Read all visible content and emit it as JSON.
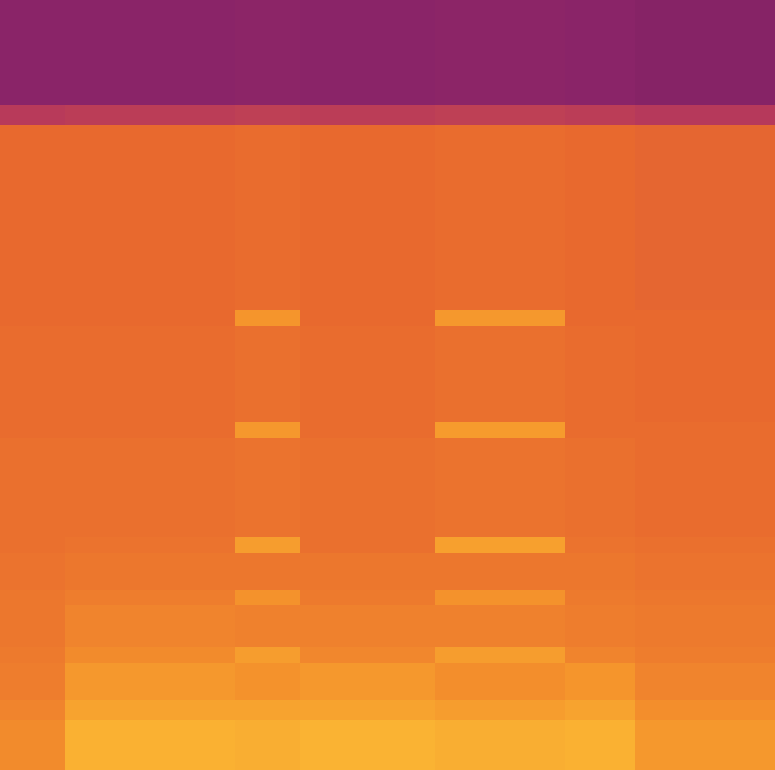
{
  "chart_data": {
    "type": "heatmap",
    "x": [
      0,
      8.4,
      30.3,
      38.7,
      56.1,
      72.9,
      81.9,
      100
    ],
    "y": [
      0,
      6.5,
      9.1,
      13.9,
      16.0,
      21.4,
      23.4,
      28.2,
      30.3,
      43.1,
      45.2,
      57.7,
      59.7,
      83.8,
      86.4,
      100
    ],
    "z": [
      [
        0.72,
        0.85,
        0.84,
        0.86,
        0.84,
        0.85,
        0.76
      ],
      [
        0.7,
        0.8,
        0.8,
        0.8,
        0.78,
        0.8,
        0.73
      ],
      [
        0.68,
        0.76,
        0.74,
        0.76,
        0.73,
        0.75,
        0.7
      ],
      [
        0.67,
        0.72,
        0.78,
        0.71,
        0.78,
        0.7,
        0.68
      ],
      [
        0.66,
        0.7,
        0.69,
        0.69,
        0.69,
        0.68,
        0.67
      ],
      [
        0.66,
        0.68,
        0.74,
        0.67,
        0.74,
        0.67,
        0.66
      ],
      [
        0.65,
        0.66,
        0.66,
        0.66,
        0.66,
        0.66,
        0.65
      ],
      [
        0.64,
        0.65,
        0.78,
        0.64,
        0.79,
        0.65,
        0.64
      ],
      [
        0.64,
        0.64,
        0.65,
        0.64,
        0.65,
        0.64,
        0.63
      ],
      [
        0.63,
        0.63,
        0.76,
        0.63,
        0.77,
        0.63,
        0.63
      ],
      [
        0.63,
        0.63,
        0.64,
        0.63,
        0.64,
        0.63,
        0.62
      ],
      [
        0.62,
        0.62,
        0.75,
        0.62,
        0.76,
        0.62,
        0.62
      ],
      [
        0.62,
        0.62,
        0.63,
        0.62,
        0.63,
        0.62,
        0.61
      ],
      [
        0.45,
        0.46,
        0.47,
        0.46,
        0.47,
        0.46,
        0.44
      ],
      [
        0.25,
        0.25,
        0.26,
        0.25,
        0.26,
        0.25,
        0.24
      ]
    ],
    "xlim": [
      0,
      100
    ],
    "ylim": [
      0,
      100
    ],
    "zlim": [
      0,
      1
    ],
    "grid": false,
    "tick_labels": false
  }
}
